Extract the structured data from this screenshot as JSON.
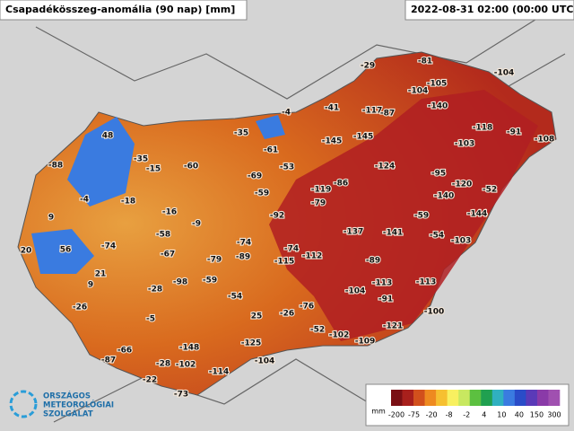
{
  "header": {
    "title": "Csapadékösszeg-anomália (90 nap) [mm]",
    "timestamp": "2022-08-31 02:00 (00:00 UTC)"
  },
  "stations": [
    "-29",
    "-81",
    "-104",
    "-105",
    "-104",
    "-140",
    "-41",
    "-117",
    "-87",
    "-4",
    "-118",
    "-91",
    "-108",
    "-35",
    "-145",
    "-145",
    "-103",
    "48",
    "-61",
    "-35",
    "-15",
    "-60",
    "-53",
    "-124",
    "-95",
    "-88",
    "-69",
    "-86",
    "-119",
    "-120",
    "-52",
    "-59",
    "-79",
    "-140",
    "-4",
    "-18",
    "-16",
    "-92",
    "-59",
    "-144",
    "9",
    "-9",
    "-137",
    "-141",
    "-54",
    "-103",
    "-58",
    "56",
    "-74",
    "-74",
    "-74",
    "-112",
    "20",
    "-67",
    "-79",
    "-89",
    "-115",
    "-89",
    "21",
    "9",
    "-59",
    "-98",
    "-28",
    "-113",
    "-113",
    "-104",
    "-54",
    "-91",
    "-26",
    "-76",
    "-100",
    "25",
    "-26",
    "-5",
    "-52",
    "-121",
    "-102",
    "-109",
    "-125",
    "-148",
    "-66",
    "-87",
    "-104",
    "-28",
    "-102",
    "-114",
    "-22",
    "-73"
  ],
  "legend": {
    "unit": "mm",
    "labels": [
      "-200",
      "-75",
      "-20",
      "-8",
      "-2",
      "4",
      "10",
      "40",
      "150",
      "300"
    ]
  },
  "logo": [
    "ORSZÁGOS",
    "METEOROLÓGIAI",
    "SZOLGÁLAT"
  ]
}
